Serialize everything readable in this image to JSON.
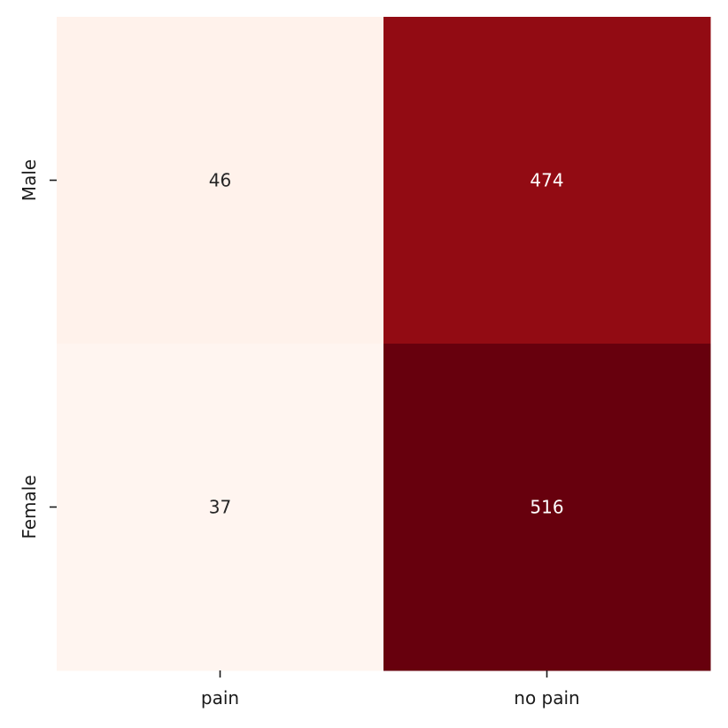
{
  "chart_data": {
    "type": "heatmap",
    "title": "",
    "xlabel": "",
    "ylabel": "",
    "x_categories": [
      "pain",
      "no pain"
    ],
    "y_categories": [
      "Male",
      "Female"
    ],
    "values": [
      [
        46,
        474
      ],
      [
        37,
        516
      ]
    ],
    "colormap": "Reds",
    "colorbar": false,
    "annotated": true,
    "colors": {
      "cell_46": "#fff2ed",
      "cell_474": "#930c14",
      "cell_37": "#fff5f0",
      "cell_516": "#67000d",
      "text_dark": "#262626",
      "text_light": "#ffffff"
    }
  }
}
